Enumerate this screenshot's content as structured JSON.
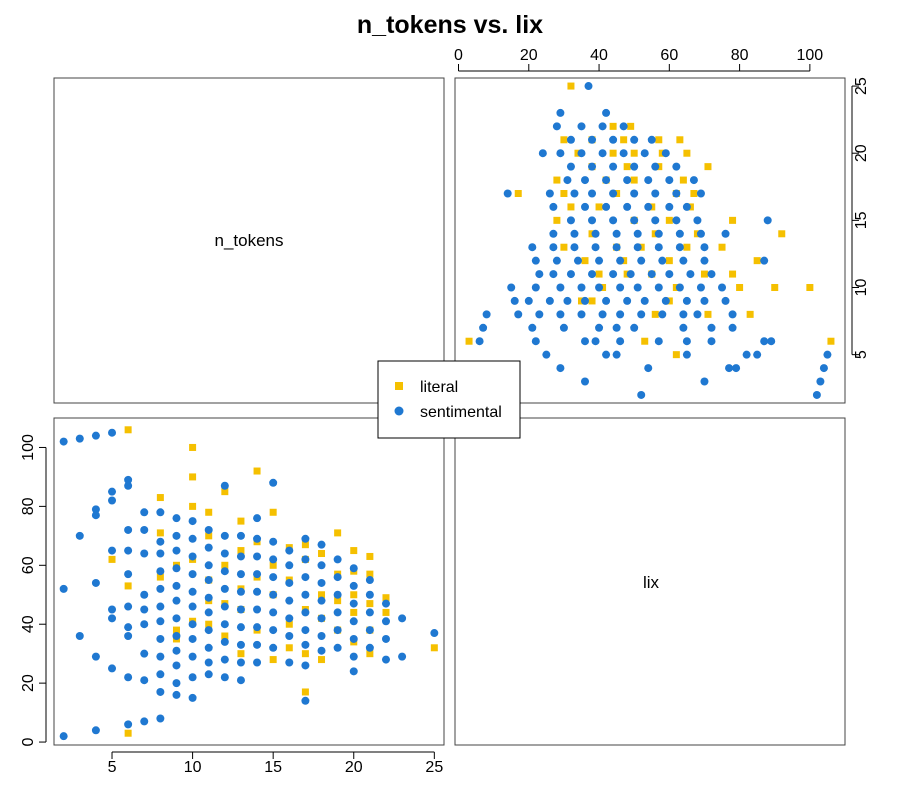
{
  "chart_data": {
    "type": "scatter",
    "title": "n_tokens vs. lix",
    "variables": [
      "n_tokens",
      "lix"
    ],
    "legend": {
      "placement": "center",
      "entries": [
        {
          "label": "literal",
          "color": "#F5C000",
          "marker": "square"
        },
        {
          "label": "sentimental",
          "color": "#1F78D1",
          "marker": "circle"
        }
      ]
    },
    "axes": {
      "n_tokens": {
        "range": [
          1.4,
          25.6
        ],
        "ticks": [
          5,
          10,
          15,
          20,
          25
        ],
        "tick_labels": [
          "5",
          "10",
          "15",
          "20",
          "25"
        ]
      },
      "lix": {
        "range": [
          -1,
          110
        ],
        "ticks": [
          0,
          20,
          40,
          60,
          80,
          100
        ],
        "tick_labels": [
          "0",
          "20",
          "40",
          "60",
          "80",
          "100"
        ]
      }
    },
    "grid": false,
    "series": [
      {
        "name": "literal",
        "color": "#F5C000",
        "points": [
          [
            6,
            106
          ],
          [
            6,
            53
          ],
          [
            5,
            62
          ],
          [
            6,
            3
          ],
          [
            8,
            83
          ],
          [
            8,
            71
          ],
          [
            8,
            56
          ],
          [
            9,
            60
          ],
          [
            9,
            38
          ],
          [
            9,
            35
          ],
          [
            10,
            100
          ],
          [
            10,
            90
          ],
          [
            10,
            80
          ],
          [
            10,
            62
          ],
          [
            10,
            41
          ],
          [
            11,
            78
          ],
          [
            11,
            70
          ],
          [
            11,
            55
          ],
          [
            11,
            48
          ],
          [
            11,
            40
          ],
          [
            12,
            85
          ],
          [
            12,
            60
          ],
          [
            12,
            47
          ],
          [
            12,
            36
          ],
          [
            13,
            75
          ],
          [
            13,
            65
          ],
          [
            13,
            52
          ],
          [
            13,
            45
          ],
          [
            13,
            30
          ],
          [
            14,
            92
          ],
          [
            14,
            68
          ],
          [
            14,
            56
          ],
          [
            14,
            38
          ],
          [
            15,
            78
          ],
          [
            15,
            60
          ],
          [
            15,
            50
          ],
          [
            15,
            28
          ],
          [
            16,
            66
          ],
          [
            16,
            55
          ],
          [
            16,
            40
          ],
          [
            16,
            32
          ],
          [
            17,
            67
          ],
          [
            17,
            62
          ],
          [
            17,
            45
          ],
          [
            17,
            30
          ],
          [
            17,
            17
          ],
          [
            18,
            64
          ],
          [
            18,
            50
          ],
          [
            18,
            42
          ],
          [
            18,
            28
          ],
          [
            19,
            71
          ],
          [
            19,
            57
          ],
          [
            19,
            48
          ],
          [
            19,
            38
          ],
          [
            20,
            65
          ],
          [
            20,
            58
          ],
          [
            20,
            50
          ],
          [
            20,
            44
          ],
          [
            20,
            34
          ],
          [
            21,
            63
          ],
          [
            21,
            57
          ],
          [
            21,
            47
          ],
          [
            21,
            38
          ],
          [
            21,
            30
          ],
          [
            22,
            49
          ],
          [
            22,
            44
          ],
          [
            25,
            32
          ]
        ]
      },
      {
        "name": "sentimental",
        "color": "#1F78D1",
        "points": [
          [
            2,
            102
          ],
          [
            2,
            52
          ],
          [
            2,
            2
          ],
          [
            3,
            103
          ],
          [
            3,
            70
          ],
          [
            3,
            36
          ],
          [
            4,
            104
          ],
          [
            4,
            79
          ],
          [
            4,
            77
          ],
          [
            4,
            54
          ],
          [
            4,
            29
          ],
          [
            4,
            4
          ],
          [
            5,
            105
          ],
          [
            5,
            85
          ],
          [
            5,
            82
          ],
          [
            5,
            65
          ],
          [
            5,
            45
          ],
          [
            5,
            42
          ],
          [
            5,
            25
          ],
          [
            6,
            89
          ],
          [
            6,
            87
          ],
          [
            6,
            72
          ],
          [
            6,
            65
          ],
          [
            6,
            57
          ],
          [
            6,
            46
          ],
          [
            6,
            39
          ],
          [
            6,
            36
          ],
          [
            6,
            22
          ],
          [
            6,
            6
          ],
          [
            7,
            78
          ],
          [
            7,
            72
          ],
          [
            7,
            64
          ],
          [
            7,
            50
          ],
          [
            7,
            45
          ],
          [
            7,
            40
          ],
          [
            7,
            30
          ],
          [
            7,
            21
          ],
          [
            7,
            7
          ],
          [
            8,
            78
          ],
          [
            8,
            68
          ],
          [
            8,
            64
          ],
          [
            8,
            58
          ],
          [
            8,
            52
          ],
          [
            8,
            46
          ],
          [
            8,
            41
          ],
          [
            8,
            35
          ],
          [
            8,
            29
          ],
          [
            8,
            23
          ],
          [
            8,
            17
          ],
          [
            8,
            8
          ],
          [
            9,
            76
          ],
          [
            9,
            70
          ],
          [
            9,
            65
          ],
          [
            9,
            59
          ],
          [
            9,
            53
          ],
          [
            9,
            48
          ],
          [
            9,
            42
          ],
          [
            9,
            36
          ],
          [
            9,
            31
          ],
          [
            9,
            26
          ],
          [
            9,
            20
          ],
          [
            9,
            16
          ],
          [
            10,
            75
          ],
          [
            10,
            69
          ],
          [
            10,
            63
          ],
          [
            10,
            57
          ],
          [
            10,
            51
          ],
          [
            10,
            46
          ],
          [
            10,
            40
          ],
          [
            10,
            35
          ],
          [
            10,
            29
          ],
          [
            10,
            22
          ],
          [
            10,
            15
          ],
          [
            11,
            72
          ],
          [
            11,
            66
          ],
          [
            11,
            60
          ],
          [
            11,
            55
          ],
          [
            11,
            49
          ],
          [
            11,
            44
          ],
          [
            11,
            38
          ],
          [
            11,
            32
          ],
          [
            11,
            27
          ],
          [
            11,
            23
          ],
          [
            12,
            87
          ],
          [
            12,
            70
          ],
          [
            12,
            64
          ],
          [
            12,
            58
          ],
          [
            12,
            52
          ],
          [
            12,
            46
          ],
          [
            12,
            40
          ],
          [
            12,
            34
          ],
          [
            12,
            28
          ],
          [
            12,
            22
          ],
          [
            13,
            70
          ],
          [
            13,
            63
          ],
          [
            13,
            57
          ],
          [
            13,
            51
          ],
          [
            13,
            45
          ],
          [
            13,
            39
          ],
          [
            13,
            33
          ],
          [
            13,
            27
          ],
          [
            13,
            21
          ],
          [
            14,
            76
          ],
          [
            14,
            69
          ],
          [
            14,
            63
          ],
          [
            14,
            57
          ],
          [
            14,
            51
          ],
          [
            14,
            45
          ],
          [
            14,
            39
          ],
          [
            14,
            33
          ],
          [
            14,
            27
          ],
          [
            15,
            88
          ],
          [
            15,
            68
          ],
          [
            15,
            62
          ],
          [
            15,
            56
          ],
          [
            15,
            50
          ],
          [
            15,
            44
          ],
          [
            15,
            38
          ],
          [
            15,
            32
          ],
          [
            16,
            65
          ],
          [
            16,
            60
          ],
          [
            16,
            54
          ],
          [
            16,
            48
          ],
          [
            16,
            42
          ],
          [
            16,
            36
          ],
          [
            16,
            27
          ],
          [
            17,
            69
          ],
          [
            17,
            62
          ],
          [
            17,
            56
          ],
          [
            17,
            50
          ],
          [
            17,
            44
          ],
          [
            17,
            38
          ],
          [
            17,
            33
          ],
          [
            17,
            26
          ],
          [
            17,
            14
          ],
          [
            18,
            67
          ],
          [
            18,
            60
          ],
          [
            18,
            54
          ],
          [
            18,
            48
          ],
          [
            18,
            42
          ],
          [
            18,
            36
          ],
          [
            18,
            31
          ],
          [
            19,
            62
          ],
          [
            19,
            56
          ],
          [
            19,
            50
          ],
          [
            19,
            44
          ],
          [
            19,
            38
          ],
          [
            19,
            32
          ],
          [
            20,
            59
          ],
          [
            20,
            53
          ],
          [
            20,
            47
          ],
          [
            20,
            41
          ],
          [
            20,
            35
          ],
          [
            20,
            29
          ],
          [
            20,
            24
          ],
          [
            21,
            55
          ],
          [
            21,
            50
          ],
          [
            21,
            44
          ],
          [
            21,
            38
          ],
          [
            21,
            32
          ],
          [
            22,
            47
          ],
          [
            22,
            41
          ],
          [
            22,
            35
          ],
          [
            22,
            28
          ],
          [
            23,
            42
          ],
          [
            23,
            29
          ],
          [
            25,
            37
          ]
        ]
      }
    ]
  }
}
